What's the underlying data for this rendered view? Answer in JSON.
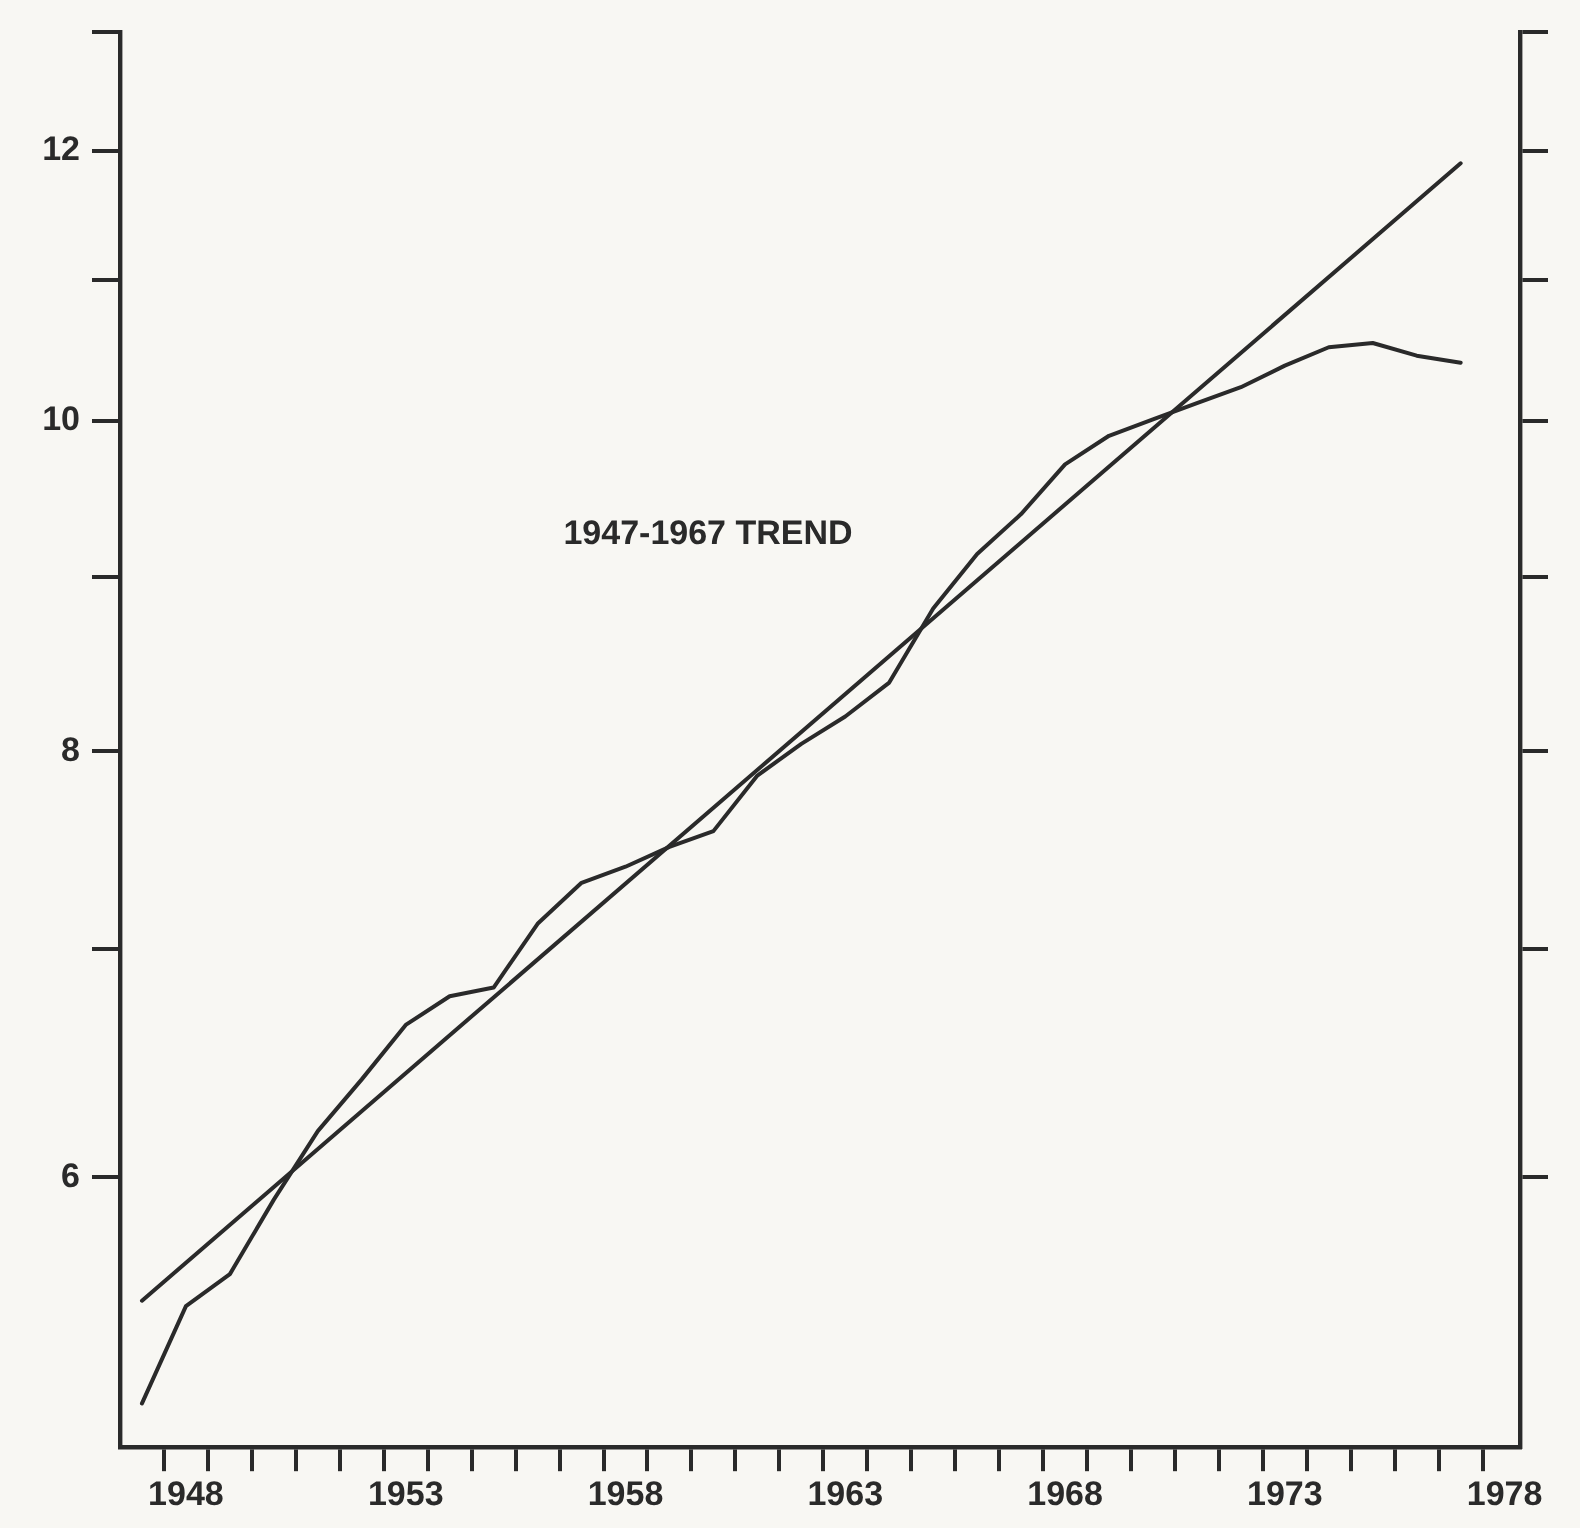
{
  "chart_data": {
    "type": "line",
    "log": "y",
    "marker": "none",
    "line_style": "solid",
    "grid": false,
    "legend": false,
    "x": [
      1947,
      1948,
      1949,
      1950,
      1951,
      1952,
      1953,
      1954,
      1955,
      1956,
      1957,
      1958,
      1959,
      1960,
      1961,
      1962,
      1963,
      1964,
      1965,
      1966,
      1967,
      1968,
      1969,
      1970,
      1971,
      1972,
      1973,
      1974,
      1975,
      1976,
      1977
    ],
    "series": [
      {
        "color": "#2a2a2a",
        "values": [
          5.15,
          5.5,
          5.62,
          5.91,
          6.19,
          6.41,
          6.65,
          6.78,
          6.82,
          7.12,
          7.32,
          7.4,
          7.5,
          7.58,
          7.87,
          8.04,
          8.19,
          8.38,
          8.81,
          9.14,
          9.39,
          9.71,
          9.9,
          10.01,
          10.12,
          10.23,
          10.38,
          10.51,
          10.54,
          10.45,
          10.4
        ]
      },
      {
        "type": "line",
        "color": "#2a2a2a",
        "x": [
          1947,
          1977
        ],
        "values": [
          5.52,
          11.9
        ]
      }
    ],
    "annotations": [
      "1947-1967 TREND"
    ],
    "xlim": [
      1946.5,
      1978.35
    ],
    "xticks": [
      {
        "value": 1947.5,
        "label": null
      },
      {
        "value": 1948,
        "label": "1948"
      },
      {
        "value": 1948.5,
        "label": null
      },
      {
        "value": 1949.5,
        "label": null
      },
      {
        "value": 1950.5,
        "label": null
      },
      {
        "value": 1951.5,
        "label": null
      },
      {
        "value": 1952.5,
        "label": null
      },
      {
        "value": 1953,
        "label": "1953"
      },
      {
        "value": 1953.5,
        "label": null
      },
      {
        "value": 1954.5,
        "label": null
      },
      {
        "value": 1955.5,
        "label": null
      },
      {
        "value": 1956.5,
        "label": null
      },
      {
        "value": 1957.5,
        "label": null
      },
      {
        "value": 1958,
        "label": "1958"
      },
      {
        "value": 1958.5,
        "label": null
      },
      {
        "value": 1959.5,
        "label": null
      },
      {
        "value": 1960.5,
        "label": null
      },
      {
        "value": 1961.5,
        "label": null
      },
      {
        "value": 1962.5,
        "label": null
      },
      {
        "value": 1963,
        "label": "1963"
      },
      {
        "value": 1963.5,
        "label": null
      },
      {
        "value": 1964.5,
        "label": null
      },
      {
        "value": 1965.5,
        "label": null
      },
      {
        "value": 1966.5,
        "label": null
      },
      {
        "value": 1967.5,
        "label": null
      },
      {
        "value": 1968,
        "label": "1968"
      },
      {
        "value": 1968.5,
        "label": null
      },
      {
        "value": 1969.5,
        "label": null
      },
      {
        "value": 1970.5,
        "label": null
      },
      {
        "value": 1971.5,
        "label": null
      },
      {
        "value": 1972.5,
        "label": null
      },
      {
        "value": 1973,
        "label": "1973"
      },
      {
        "value": 1973.5,
        "label": null
      },
      {
        "value": 1974.5,
        "label": null
      },
      {
        "value": 1975.5,
        "label": null
      },
      {
        "value": 1976.5,
        "label": null
      },
      {
        "value": 1977.5,
        "label": null
      },
      {
        "value": 1978,
        "label": "1978"
      }
    ],
    "ylim": [
      5,
      13
    ],
    "yticks": [
      6,
      {
        "value": 7,
        "label": null
      },
      8,
      {
        "value": 9,
        "label": null
      },
      10,
      {
        "value": 11,
        "label": null
      },
      12,
      {
        "value": 13,
        "label": null
      }
    ]
  }
}
